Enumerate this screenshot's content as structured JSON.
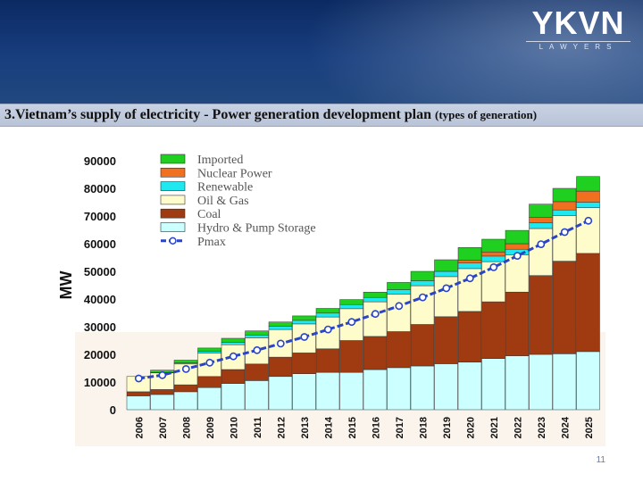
{
  "header": {
    "logo_main": "YKVN",
    "logo_sub": "LAWYERS"
  },
  "slide": {
    "title": "3.Vietnam’s supply of electricity - Power generation development plan",
    "title_suffix": "(types of generation)",
    "page_number": "11"
  },
  "colors": {
    "banner": "#183e7e",
    "imported": "#20d020",
    "nuclear": "#f07020",
    "renewable": "#20e8f0",
    "oil_gas": "#fffccc",
    "coal": "#a03a10",
    "hydro": "#ccffff",
    "pmax": "#2a44c8"
  },
  "chart_data": {
    "type": "bar",
    "stacked": true,
    "ylabel": "MW",
    "xlabel": "",
    "ylim": [
      0,
      90000
    ],
    "yticks": [
      "90000",
      "80000",
      "70000",
      "60000",
      "50000",
      "40000",
      "30000",
      "20000",
      "10000",
      "0"
    ],
    "legend_position": "top-left",
    "categories": [
      "2006",
      "2007",
      "2008",
      "2009",
      "2010",
      "2011",
      "2012",
      "2013",
      "2014",
      "2015",
      "2016",
      "2017",
      "2018",
      "2019",
      "2020",
      "2021",
      "2022",
      "2023",
      "2024",
      "2025"
    ],
    "series": [
      {
        "name": "Hydro & Pump Storage",
        "color": "#ccffff",
        "values": [
          5000,
          5500,
          6500,
          8000,
          9500,
          10500,
          12000,
          13000,
          13500,
          13500,
          14500,
          15200,
          15800,
          16600,
          17200,
          18500,
          19500,
          20000,
          20200,
          21000
        ]
      },
      {
        "name": "Coal",
        "color": "#a03a10",
        "values": [
          1500,
          1800,
          2500,
          4000,
          5000,
          6000,
          7000,
          7500,
          8500,
          11500,
          12000,
          13000,
          15000,
          17000,
          18300,
          20500,
          23000,
          28500,
          33500,
          35500
        ]
      },
      {
        "name": "Oil & Gas",
        "color": "#fffccc",
        "values": [
          5500,
          6000,
          7500,
          8500,
          9000,
          9500,
          10000,
          10500,
          11500,
          11500,
          12500,
          13500,
          14000,
          14500,
          15500,
          14500,
          13500,
          17000,
          16500,
          16500
        ]
      },
      {
        "name": "Renewable",
        "color": "#20e8f0",
        "values": [
          0,
          200,
          400,
          600,
          800,
          1000,
          1200,
          1300,
          1400,
          1500,
          1600,
          1700,
          1800,
          1900,
          2000,
          2000,
          2000,
          2000,
          2000,
          2000
        ]
      },
      {
        "name": "Nuclear Power",
        "color": "#f07020",
        "values": [
          0,
          0,
          0,
          0,
          0,
          0,
          0,
          0,
          0,
          0,
          0,
          0,
          0,
          0,
          1000,
          1500,
          2000,
          2000,
          3000,
          4000
        ]
      },
      {
        "name": "Imported",
        "color": "#20d020",
        "values": [
          0,
          800,
          1000,
          1200,
          1500,
          1500,
          1500,
          1600,
          1700,
          1800,
          1900,
          2600,
          3400,
          4200,
          4600,
          4600,
          4800,
          4800,
          4800,
          5300
        ]
      }
    ],
    "line_series": {
      "name": "Pmax",
      "color": "#2a44c8",
      "values": [
        11300,
        12500,
        14700,
        17000,
        19300,
        21500,
        23900,
        26300,
        29000,
        31700,
        34600,
        37500,
        40600,
        43900,
        47500,
        51500,
        55600,
        59800,
        64200,
        68300
      ]
    }
  }
}
